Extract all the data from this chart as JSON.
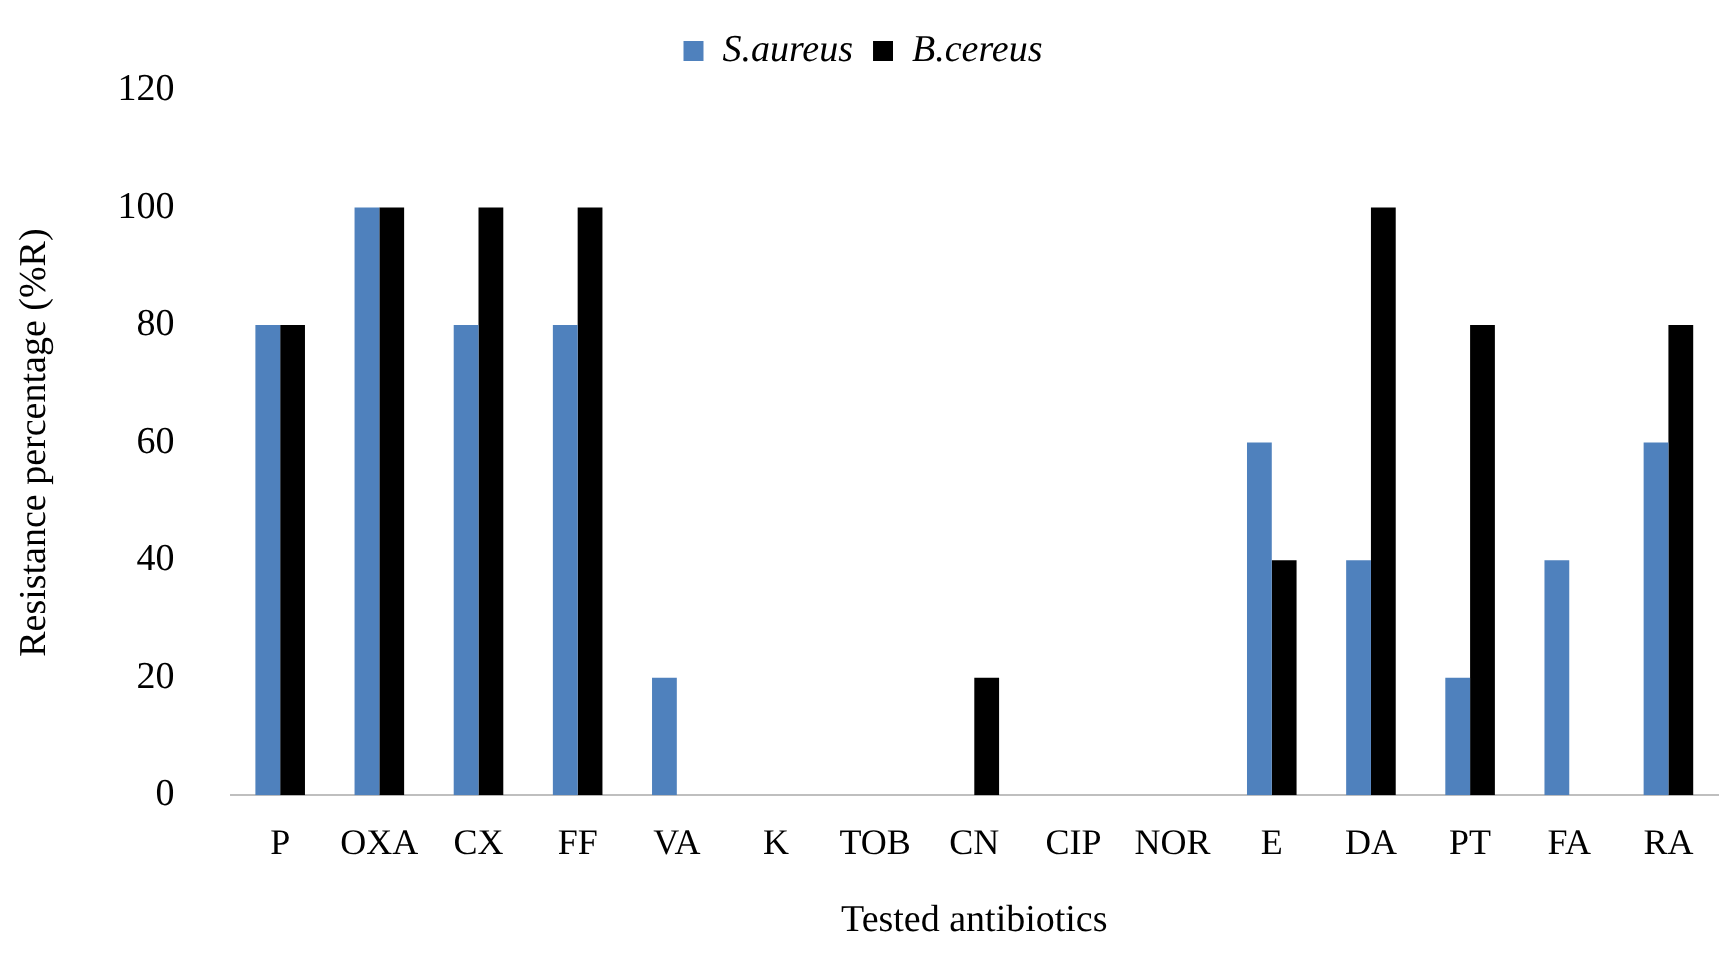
{
  "chart_data": {
    "type": "bar",
    "xlabel": "Tested antibiotics",
    "ylabel": "Resistance percentage (%R)",
    "categories": [
      "P",
      "OXA",
      "CX",
      "FF",
      "VA",
      "K",
      "TOB",
      "CN",
      "CIP",
      "NOR",
      "E",
      "DA",
      "PT",
      "FA",
      "RA"
    ],
    "series": [
      {
        "name": "S.aureus",
        "color": "#4f81bd",
        "values": [
          80,
          100,
          80,
          80,
          20,
          0,
          0,
          0,
          0,
          0,
          60,
          40,
          20,
          40,
          60
        ]
      },
      {
        "name": "B.cereus",
        "color": "#000000",
        "values": [
          80,
          100,
          100,
          100,
          0,
          0,
          0,
          20,
          0,
          0,
          40,
          100,
          80,
          0,
          80
        ]
      }
    ],
    "ylim": [
      0,
      120
    ],
    "yticks": [
      0,
      20,
      40,
      60,
      80,
      100,
      120
    ],
    "grid": false,
    "legend": "top"
  }
}
